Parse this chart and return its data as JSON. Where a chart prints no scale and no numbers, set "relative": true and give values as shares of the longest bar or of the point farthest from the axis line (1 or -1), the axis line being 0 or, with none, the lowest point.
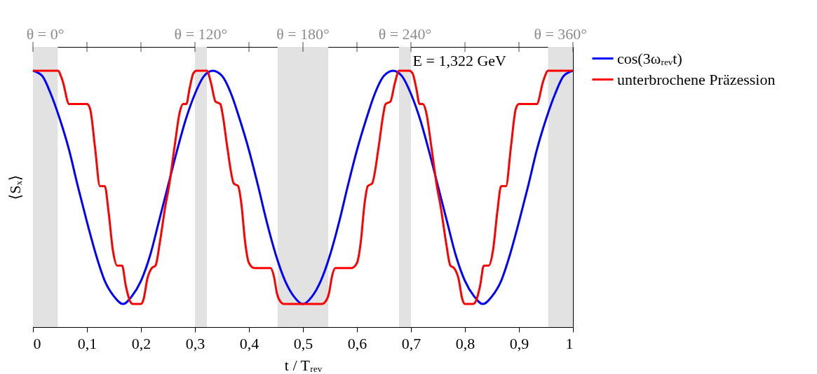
{
  "chart_data": {
    "type": "line",
    "relative": true,
    "xlabel": "t / Tᵣₑᵥ",
    "ylabel": "⟨Sₓ⟩",
    "annotations": [
      "E = 1,322 GeV"
    ],
    "xlim": [
      0,
      1
    ],
    "xticks": [
      0,
      {
        "value": 0.1,
        "label": "0,1"
      },
      {
        "value": 0.2,
        "label": "0,2"
      },
      {
        "value": 0.3,
        "label": "0,3"
      },
      {
        "value": 0.4,
        "label": "0,4"
      },
      {
        "value": 0.5,
        "label": "0,5"
      },
      {
        "value": 0.6,
        "label": "0,6"
      },
      {
        "value": 0.7,
        "label": "0,7"
      },
      {
        "value": 0.8,
        "label": "0,8"
      },
      {
        "value": 0.9,
        "label": "0,9"
      },
      1
    ],
    "grid": false,
    "legend": "right",
    "marker": "none",
    "line_style": "solid",
    "bands": [
      {
        "axis": "x",
        "from": 0,
        "to": 0.046,
        "label": "θ = 0°",
        "color": "#e2e2e2"
      },
      {
        "axis": "x",
        "from": 0.3,
        "to": 0.322,
        "label": "θ = 120°",
        "color": "#e2e2e2"
      },
      {
        "axis": "x",
        "from": 0.453,
        "to": 0.547,
        "label": "θ = 180°",
        "color": "#e2e2e2"
      },
      {
        "axis": "x",
        "from": 0.678,
        "to": 0.7,
        "label": "θ = 240°",
        "color": "#e2e2e2"
      },
      {
        "axis": "x",
        "from": 0.954,
        "to": 1,
        "label": "θ = 360°",
        "color": "#e2e2e2"
      }
    ],
    "series": [
      {
        "name": "cos(3ωᵣₑᵥt)",
        "color": "#0000ff",
        "x": [
          0,
          0.017,
          0.033,
          0.05,
          0.067,
          0.083,
          0.1,
          0.117,
          0.133,
          0.15,
          0.167,
          0.183,
          0.2,
          0.217,
          0.233,
          0.25,
          0.267,
          0.283,
          0.3,
          0.317,
          0.333,
          0.35,
          0.367,
          0.383,
          0.4,
          0.417,
          0.433,
          0.45,
          0.467,
          0.483,
          0.5,
          0.517,
          0.533,
          0.55,
          0.567,
          0.583,
          0.6,
          0.617,
          0.633,
          0.65,
          0.667,
          0.683,
          0.7,
          0.717,
          0.733,
          0.75,
          0.767,
          0.783,
          0.8,
          0.817,
          0.833,
          0.85,
          0.867,
          0.883,
          0.9,
          0.917,
          0.933,
          0.95,
          0.967,
          0.983,
          1
        ],
        "values": [
          1,
          0.98,
          0.91,
          0.81,
          0.69,
          0.55,
          0.41,
          0.28,
          0.18,
          0.12,
          0.09,
          0.12,
          0.18,
          0.28,
          0.41,
          0.55,
          0.69,
          0.81,
          0.91,
          0.98,
          1,
          0.98,
          0.91,
          0.81,
          0.69,
          0.55,
          0.41,
          0.28,
          0.18,
          0.12,
          0.09,
          0.12,
          0.18,
          0.28,
          0.41,
          0.55,
          0.69,
          0.81,
          0.91,
          0.98,
          1,
          0.98,
          0.91,
          0.81,
          0.69,
          0.55,
          0.41,
          0.28,
          0.18,
          0.12,
          0.09,
          0.12,
          0.18,
          0.28,
          0.41,
          0.55,
          0.69,
          0.81,
          0.91,
          0.98,
          1
        ]
      },
      {
        "name": "unterbrochene Präzession",
        "color": "#ff0000",
        "x": [
          0,
          0.046,
          0.055,
          0.067,
          0.085,
          0.1,
          0.106,
          0.115,
          0.124,
          0.133,
          0.14,
          0.148,
          0.156,
          0.165,
          0.172,
          0.18,
          0.185,
          0.2,
          0.205,
          0.212,
          0.22,
          0.227,
          0.235,
          0.245,
          0.252,
          0.262,
          0.272,
          0.278,
          0.284,
          0.29,
          0.297,
          0.303,
          0.322,
          0.33,
          0.338,
          0.347,
          0.352,
          0.36,
          0.372,
          0.38,
          0.386,
          0.393,
          0.4,
          0.41,
          0.44,
          0.446,
          0.452,
          0.458,
          0.465,
          0.5,
          0.535,
          0.542,
          0.548,
          0.554,
          0.56,
          0.59,
          0.6,
          0.607,
          0.614,
          0.62,
          0.628,
          0.64,
          0.648,
          0.653,
          0.662,
          0.67,
          0.678,
          0.697,
          0.703,
          0.71,
          0.716,
          0.722,
          0.728,
          0.738,
          0.748,
          0.755,
          0.765,
          0.773,
          0.78,
          0.788,
          0.795,
          0.8,
          0.815,
          0.82,
          0.828,
          0.835,
          0.844,
          0.852,
          0.86,
          0.867,
          0.876,
          0.885,
          0.894,
          0.9,
          0.915,
          0.933,
          0.945,
          0.954,
          1
        ],
        "values": [
          1,
          1,
          0.96,
          0.87,
          0.87,
          0.87,
          0.85,
          0.7,
          0.55,
          0.55,
          0.45,
          0.3,
          0.24,
          0.24,
          0.16,
          0.1,
          0.09,
          0.09,
          0.11,
          0.19,
          0.23,
          0.24,
          0.33,
          0.47,
          0.55,
          0.7,
          0.84,
          0.87,
          0.87,
          0.93,
          0.99,
          1,
          1,
          0.95,
          0.88,
          0.87,
          0.82,
          0.7,
          0.56,
          0.55,
          0.48,
          0.33,
          0.25,
          0.23,
          0.23,
          0.2,
          0.13,
          0.1,
          0.09,
          0.09,
          0.09,
          0.1,
          0.13,
          0.2,
          0.23,
          0.23,
          0.25,
          0.33,
          0.48,
          0.55,
          0.56,
          0.7,
          0.82,
          0.87,
          0.88,
          0.95,
          1,
          1,
          0.99,
          0.93,
          0.87,
          0.87,
          0.84,
          0.7,
          0.55,
          0.47,
          0.33,
          0.24,
          0.23,
          0.19,
          0.11,
          0.09,
          0.09,
          0.1,
          0.16,
          0.24,
          0.24,
          0.3,
          0.45,
          0.55,
          0.55,
          0.7,
          0.85,
          0.87,
          0.87,
          0.87,
          0.96,
          1,
          1
        ]
      }
    ]
  }
}
